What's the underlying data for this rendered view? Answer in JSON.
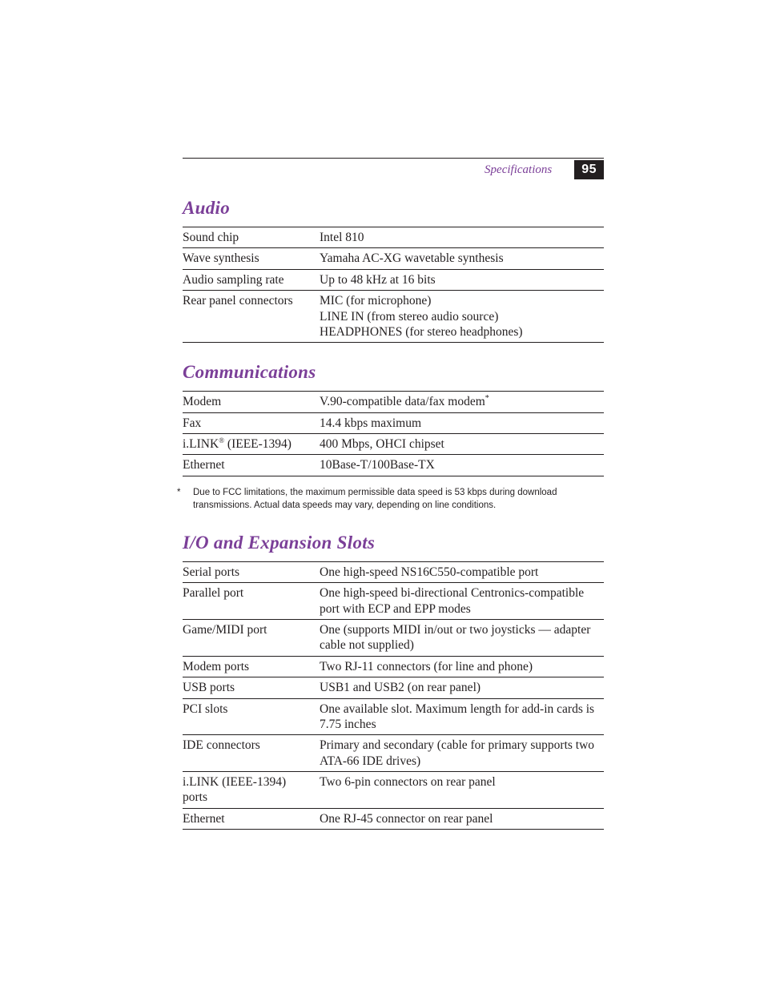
{
  "header": {
    "section_label": "Specifications",
    "page_number": "95"
  },
  "sections": {
    "audio": {
      "heading": "Audio",
      "rows": [
        {
          "label": "Sound chip",
          "value": "Intel 810"
        },
        {
          "label": "Wave synthesis",
          "value": "Yamaha AC-XG wavetable synthesis"
        },
        {
          "label": "Audio sampling rate",
          "value": "Up to 48 kHz at 16 bits"
        },
        {
          "label": "Rear panel connectors",
          "value": "MIC (for microphone)\nLINE IN (from stereo audio source)\nHEADPHONES (for stereo headphones)"
        }
      ]
    },
    "communications": {
      "heading": "Communications",
      "rows": [
        {
          "label": "Modem",
          "value_html": "V.90-compatible data/fax modem<span class=\"sup-star\">*</span>"
        },
        {
          "label": "Fax",
          "value": "14.4 kbps maximum"
        },
        {
          "label_html": "i.LINK<span class=\"reg\">®</span> (IEEE-1394)",
          "value": "400 Mbps, OHCI chipset"
        },
        {
          "label": "Ethernet",
          "value": "10Base-T/100Base-TX"
        }
      ],
      "footnote": "Due to FCC limitations, the maximum permissible data speed is 53 kbps during download transmissions. Actual data speeds may vary, depending on line conditions."
    },
    "io": {
      "heading": "I/O and Expansion Slots",
      "rows": [
        {
          "label": "Serial ports",
          "value": "One high-speed NS16C550-compatible port"
        },
        {
          "label": "Parallel port",
          "value": "One high-speed bi-directional Centronics-compatible port with ECP and EPP modes"
        },
        {
          "label": "Game/MIDI port",
          "value": "One (supports MIDI in/out or two joysticks — adapter cable not supplied)"
        },
        {
          "label": "Modem ports",
          "value": "Two RJ-11 connectors (for line and phone)"
        },
        {
          "label": "USB ports",
          "value": "USB1 and USB2 (on rear panel)"
        },
        {
          "label": "PCI slots",
          "value": "One available slot. Maximum length for add-in cards is 7.75 inches"
        },
        {
          "label": "IDE connectors",
          "value": "Primary and secondary (cable for primary supports two ATA-66 IDE drives)"
        },
        {
          "label": "i.LINK (IEEE-1394) ports",
          "value": "Two 6-pin connectors on rear panel"
        },
        {
          "label": "Ethernet",
          "value": "One RJ-45 connector on rear panel"
        }
      ]
    }
  }
}
